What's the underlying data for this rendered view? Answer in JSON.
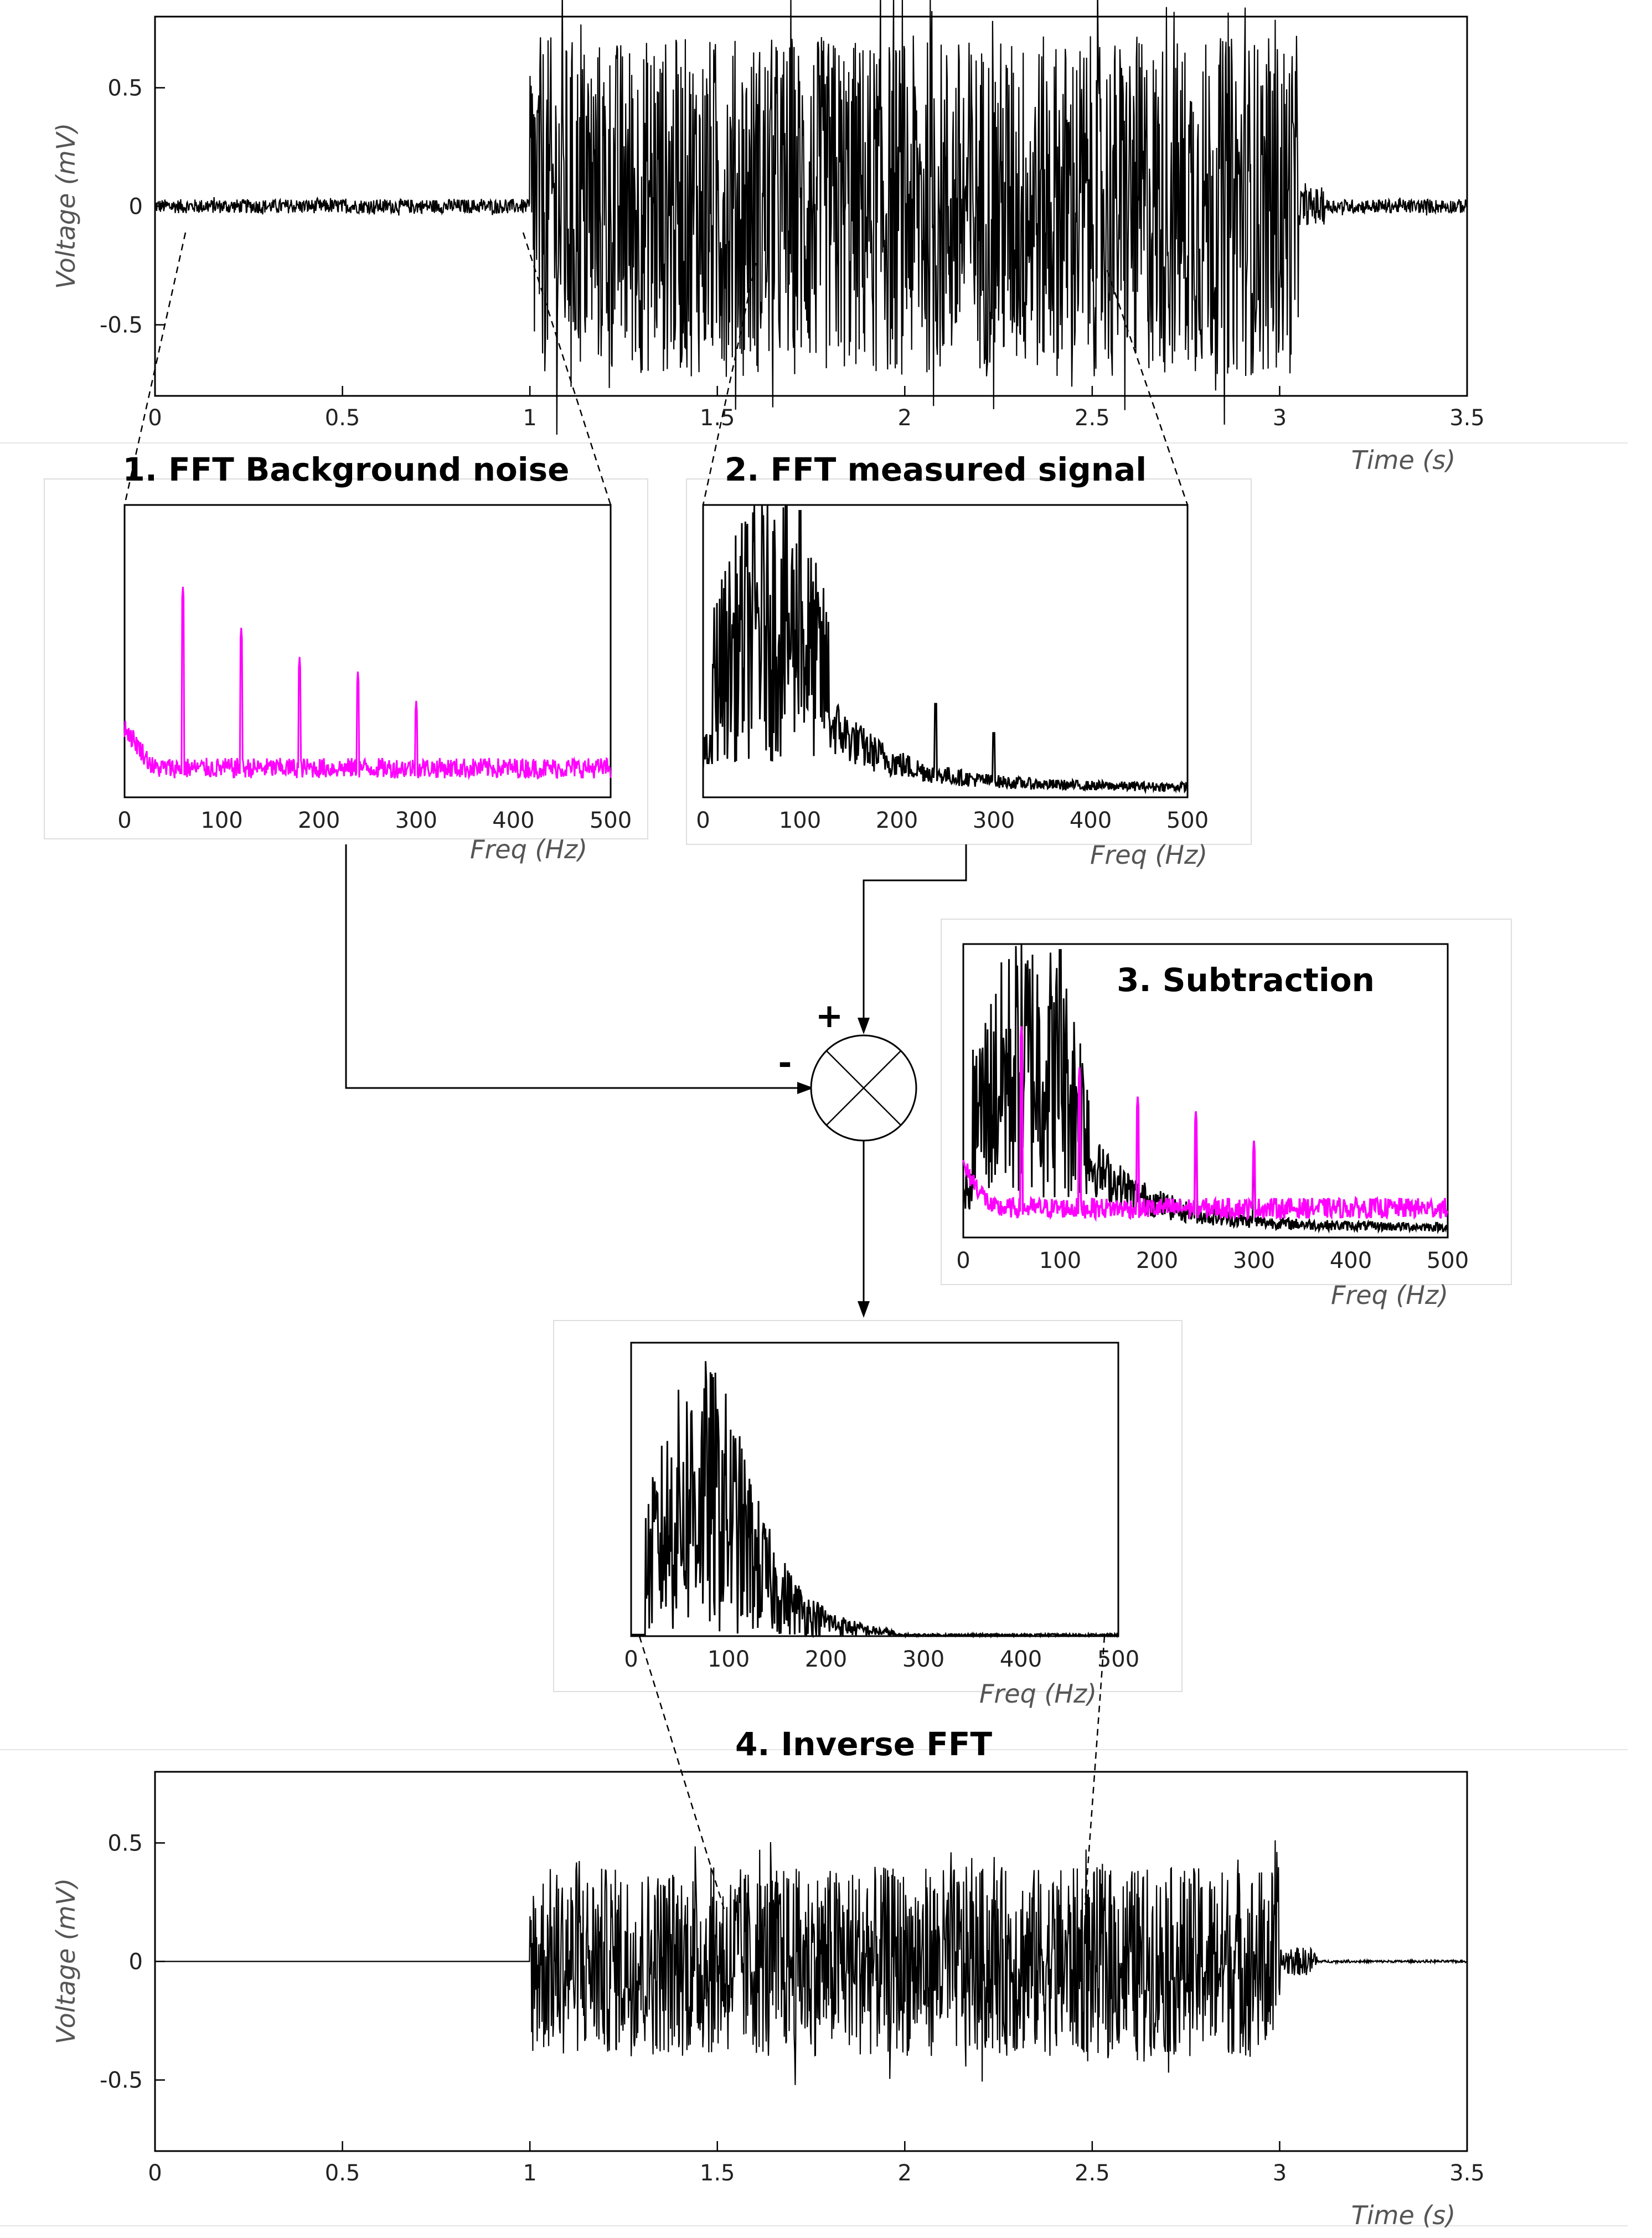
{
  "colors": {
    "signal": "#000000",
    "noise": "#ff00ff",
    "panel_border": "#dedede"
  },
  "titles": {
    "step1": "1. FFT Background noise",
    "step2": "2. FFT measured signal",
    "step3": "3. Subtraction",
    "step4": "4. Inverse FFT"
  },
  "operator": {
    "plus": "+",
    "minus": "-"
  },
  "chart_data": [
    {
      "id": "measured_time",
      "type": "line",
      "title": "",
      "xlabel": "Time (s)",
      "ylabel": "Voltage (mV)",
      "xlim": [
        0,
        3.5
      ],
      "ylim": [
        -0.8,
        0.8
      ],
      "xticks": [
        "0",
        "0.5",
        "1",
        "1.5",
        "2",
        "2.5",
        "3",
        "3.5"
      ],
      "yticks": [
        "0.5",
        "0",
        "-0.5"
      ],
      "series": [
        {
          "name": "measured signal",
          "color": "#000000",
          "description": "background noise amplitude ~0.03 mV from 0 to 1.0 s, muscle activity 1.0-3.05 s with peaks up to ~0.73 mV, decays back to noise after ~3.1 s",
          "segments": [
            {
              "x": [
                0,
                1.0
              ],
              "amplitude": 0.03
            },
            {
              "x": [
                1.0,
                3.05
              ],
              "amplitude": 0.72
            },
            {
              "x": [
                3.05,
                3.12
              ],
              "amplitude": 0.08
            },
            {
              "x": [
                3.12,
                3.5
              ],
              "amplitude": 0.03
            }
          ]
        }
      ]
    },
    {
      "id": "fft_noise",
      "type": "line",
      "title": "1. FFT Background noise",
      "xlabel": "Freq (Hz)",
      "xlim": [
        0,
        500
      ],
      "xticks": [
        "0",
        "100",
        "200",
        "300",
        "400",
        "500"
      ],
      "series": [
        {
          "name": "noise spectrum",
          "color": "#ff00ff",
          "baseline": 0.1,
          "peaks": [
            {
              "x": 60,
              "y": 0.72
            },
            {
              "x": 120,
              "y": 0.58
            },
            {
              "x": 180,
              "y": 0.48
            },
            {
              "x": 240,
              "y": 0.43
            },
            {
              "x": 300,
              "y": 0.33
            }
          ]
        }
      ]
    },
    {
      "id": "fft_signal",
      "type": "line",
      "title": "2. FFT measured signal",
      "xlabel": "Freq (Hz)",
      "xlim": [
        0,
        500
      ],
      "xticks": [
        "0",
        "100",
        "200",
        "300",
        "400",
        "500"
      ],
      "series": [
        {
          "name": "signal spectrum",
          "color": "#000000",
          "description": "broad energy 10-130 Hz with peak ~0.98 near 100 Hz, decaying to baseline ~0.05 by 500 Hz; small harmonics at 240 and 300 Hz",
          "peaks": [
            {
              "x": 100,
              "y": 0.98
            },
            {
              "x": 240,
              "y": 0.32
            },
            {
              "x": 300,
              "y": 0.22
            }
          ]
        }
      ]
    },
    {
      "id": "fft_subtraction",
      "type": "line",
      "title": "3. Subtraction",
      "xlabel": "Freq (Hz)",
      "xlim": [
        0,
        500
      ],
      "xticks": [
        "0",
        "100",
        "200",
        "300",
        "400",
        "500"
      ],
      "series": [
        {
          "name": "signal spectrum",
          "color": "#000000"
        },
        {
          "name": "noise spectrum",
          "color": "#ff00ff"
        }
      ]
    },
    {
      "id": "fft_clean",
      "type": "line",
      "title": "",
      "xlabel": "Freq (Hz)",
      "xlim": [
        0,
        500
      ],
      "xticks": [
        "0",
        "100",
        "200",
        "300",
        "400",
        "500"
      ],
      "series": [
        {
          "name": "denoised spectrum",
          "color": "#000000",
          "description": "near zero below ~15 Hz, peaks up to ~0.95 around 100 Hz, decays to ~0 beyond 260 Hz"
        }
      ]
    },
    {
      "id": "clean_time",
      "type": "line",
      "title": "4. Inverse FFT",
      "xlabel": "Time (s)",
      "ylabel": "Voltage (mV)",
      "xlim": [
        0,
        3.5
      ],
      "ylim": [
        -0.8,
        0.8
      ],
      "xticks": [
        "0",
        "0.5",
        "1",
        "1.5",
        "2",
        "2.5",
        "3",
        "3.5"
      ],
      "yticks": [
        "0.5",
        "0",
        "-0.5"
      ],
      "series": [
        {
          "name": "filtered signal",
          "color": "#000000",
          "segments": [
            {
              "x": [
                0,
                1.0
              ],
              "amplitude": 0.0
            },
            {
              "x": [
                1.0,
                3.0
              ],
              "amplitude": 0.4
            },
            {
              "x": [
                3.0,
                3.1
              ],
              "amplitude": 0.06
            },
            {
              "x": [
                3.1,
                3.5
              ],
              "amplitude": 0.005
            }
          ]
        }
      ]
    }
  ]
}
